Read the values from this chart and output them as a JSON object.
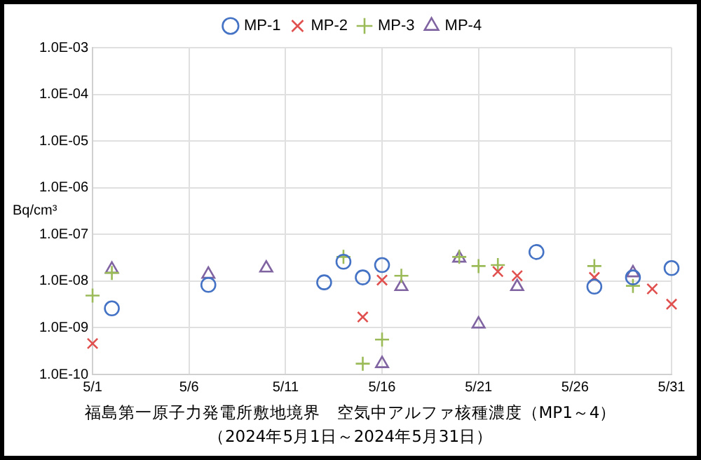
{
  "chart_data": {
    "type": "scatter",
    "title": "福島第一原子力発電所敷地境界　空気中アルファ核種濃度（MP1～4）",
    "subtitle": "（2024年5月1日～2024年5月31日）",
    "ylabel": "Bq/cm³",
    "log": "y",
    "grid": true,
    "legend": "top",
    "xlim": [
      "--05-01",
      "--05-31"
    ],
    "xticks": [
      {
        "value": "--05-01",
        "label": "5/1"
      },
      {
        "value": "--05-06",
        "label": "5/6"
      },
      {
        "value": "--05-11",
        "label": "5/11"
      },
      {
        "value": "--05-16",
        "label": "5/16"
      },
      {
        "value": "--05-21",
        "label": "5/21"
      },
      {
        "value": "--05-26",
        "label": "5/26"
      },
      {
        "value": "--05-31",
        "label": "5/31"
      }
    ],
    "ylim": [
      1e-10,
      0.001
    ],
    "yticks": [
      {
        "value": 1e-10,
        "label": "1.0E-10"
      },
      {
        "value": 1e-09,
        "label": "1.0E-09"
      },
      {
        "value": 1e-08,
        "label": "1.0E-08"
      },
      {
        "value": 1e-07,
        "label": "1.0E-07"
      },
      {
        "value": 1e-06,
        "label": "1.0E-06"
      },
      {
        "value": 1e-05,
        "label": "1.0E-05"
      },
      {
        "value": 0.0001,
        "label": "1.0E-04"
      },
      {
        "value": 0.001,
        "label": "1.0E-03"
      }
    ],
    "series": [
      {
        "name": "MP-1",
        "color": "#4472c4",
        "marker": "circle",
        "x": [
          "--05-02",
          "--05-07",
          "--05-13",
          "--05-14",
          "--05-15",
          "--05-16",
          "--05-24",
          "--05-27",
          "--05-29",
          "--05-31"
        ],
        "values": [
          2.6e-09,
          8.3e-09,
          9.4e-09,
          2.6e-08,
          1.2e-08,
          2.2e-08,
          4.2e-08,
          7.6e-09,
          1.2e-08,
          1.9e-08
        ]
      },
      {
        "name": "MP-2",
        "color": "#e0504f",
        "marker": "x",
        "x": [
          "--05-01",
          "--05-15",
          "--05-16",
          "--05-22",
          "--05-23",
          "--05-27",
          "--05-30",
          "--05-31"
        ],
        "values": [
          4.6e-10,
          1.7e-09,
          1.05e-08,
          1.6e-08,
          1.3e-08,
          1.2e-08,
          6.8e-09,
          3.2e-09
        ]
      },
      {
        "name": "MP-3",
        "color": "#9bbb59",
        "marker": "cross",
        "x": [
          "--05-01",
          "--05-02",
          "--05-14",
          "--05-15",
          "--05-16",
          "--05-17",
          "--05-20",
          "--05-21",
          "--05-22",
          "--05-27",
          "--05-29"
        ],
        "values": [
          4.9e-09,
          1.5e-08,
          3.3e-08,
          1.7e-10,
          5.6e-10,
          1.3e-08,
          3.3e-08,
          2.1e-08,
          2.2e-08,
          2.1e-08,
          7.9e-09
        ]
      },
      {
        "name": "MP-4",
        "color": "#8064a2",
        "marker": "triangle",
        "x": [
          "--05-02",
          "--05-07",
          "--05-10",
          "--05-16",
          "--05-17",
          "--05-20",
          "--05-21",
          "--05-23",
          "--05-29"
        ],
        "values": [
          1.8e-08,
          1.4e-08,
          1.9e-08,
          1.7e-10,
          7.6e-09,
          3.1e-08,
          1.2e-09,
          7.6e-09,
          1.5e-08
        ]
      }
    ]
  }
}
